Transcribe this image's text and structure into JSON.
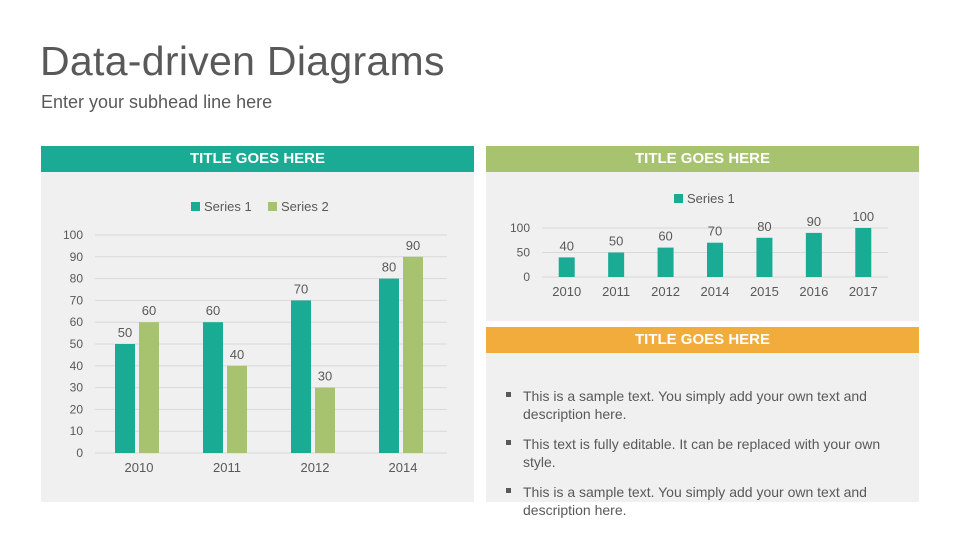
{
  "header": {
    "title": "Data-driven Diagrams",
    "subtitle": "Enter your subhead line here"
  },
  "panels": {
    "left": {
      "title": "TITLE GOES HERE",
      "color": "#1aab94"
    },
    "right_top": {
      "title": "TITLE GOES HERE",
      "color": "#a8c36f"
    },
    "right_bottom": {
      "title": "TITLE GOES HERE",
      "color": "#f2ac3c"
    }
  },
  "bullets": [
    "This is a sample text. You simply add your own text and description here.",
    "This text is fully editable. It can be replaced with your own style.",
    "This is a sample text. You simply add your own text and description here."
  ],
  "colors": {
    "series1": "#1aab94",
    "series2": "#a8c36f"
  },
  "chart_data": [
    {
      "type": "bar",
      "title": "",
      "categories": [
        "2010",
        "2011",
        "2012",
        "2014"
      ],
      "series": [
        {
          "name": "Series 1",
          "values": [
            50,
            60,
            70,
            80
          ]
        },
        {
          "name": "Series 2",
          "values": [
            60,
            40,
            30,
            90
          ]
        }
      ],
      "ylim": [
        0,
        100
      ],
      "yticks": [
        0,
        10,
        20,
        30,
        40,
        50,
        60,
        70,
        80,
        90,
        100
      ],
      "grid": true,
      "legend": "top",
      "data_labels": true
    },
    {
      "type": "bar",
      "title": "",
      "categories": [
        "2010",
        "2011",
        "2012",
        "2014",
        "2015",
        "2016",
        "2017"
      ],
      "series": [
        {
          "name": "Series 1",
          "values": [
            40,
            50,
            60,
            70,
            80,
            90,
            100
          ]
        }
      ],
      "ylim": [
        0,
        100
      ],
      "yticks": [
        0,
        50,
        100
      ],
      "grid": true,
      "legend": "top",
      "data_labels": true
    }
  ]
}
